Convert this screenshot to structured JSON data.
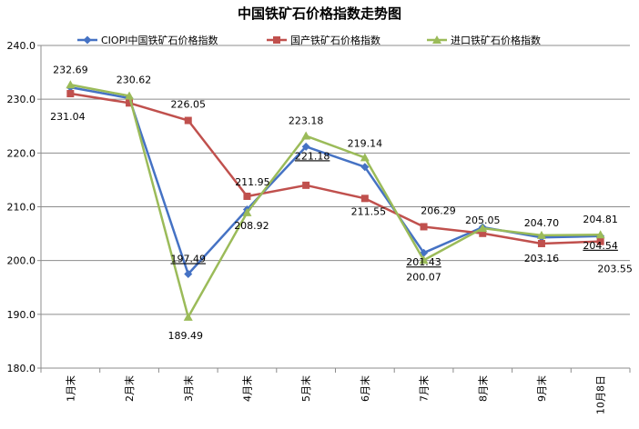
{
  "chart_data": {
    "type": "line",
    "title": "中国铁矿石价格指数走势图",
    "categories": [
      "1月末",
      "2月末",
      "3月末",
      "4月末",
      "5月末",
      "6月末",
      "7月末",
      "8月末",
      "9月末",
      "10月8日"
    ],
    "ylim": [
      180.0,
      240.0
    ],
    "yticks": [
      "180.0",
      "190.0",
      "200.0",
      "210.0",
      "220.0",
      "230.0",
      "240.0"
    ],
    "grid": true,
    "legend_position": "top",
    "series": [
      {
        "name": "CIOPI中国铁矿石价格指数",
        "color": "#4572C4",
        "marker": "diamond",
        "values": [
          232.2,
          230.2,
          197.49,
          209.5,
          221.18,
          217.4,
          201.43,
          206.2,
          204.3,
          204.54
        ],
        "labels": [
          "",
          "",
          "197.49",
          "",
          "221.18",
          "",
          "201.43",
          "",
          "",
          "204.54"
        ]
      },
      {
        "name": "国产铁矿石价格指数",
        "color": "#C0504D",
        "marker": "square",
        "values": [
          231.04,
          229.3,
          226.05,
          211.95,
          214.0,
          211.55,
          206.29,
          205.05,
          203.16,
          203.55
        ],
        "labels": [
          "231.04",
          "",
          "226.05",
          "211.95",
          "",
          "211.55",
          "206.29",
          "205.05",
          "203.16",
          "203.55"
        ]
      },
      {
        "name": "进口铁矿石价格指数",
        "color": "#9BBB59",
        "marker": "triangle",
        "values": [
          232.69,
          230.62,
          189.49,
          208.92,
          223.18,
          219.14,
          200.07,
          206.0,
          204.7,
          204.81
        ],
        "labels": [
          "232.69",
          "230.62",
          "189.49",
          "208.92",
          "223.18",
          "219.14",
          "200.07",
          "",
          "204.70",
          "204.81"
        ]
      }
    ]
  }
}
